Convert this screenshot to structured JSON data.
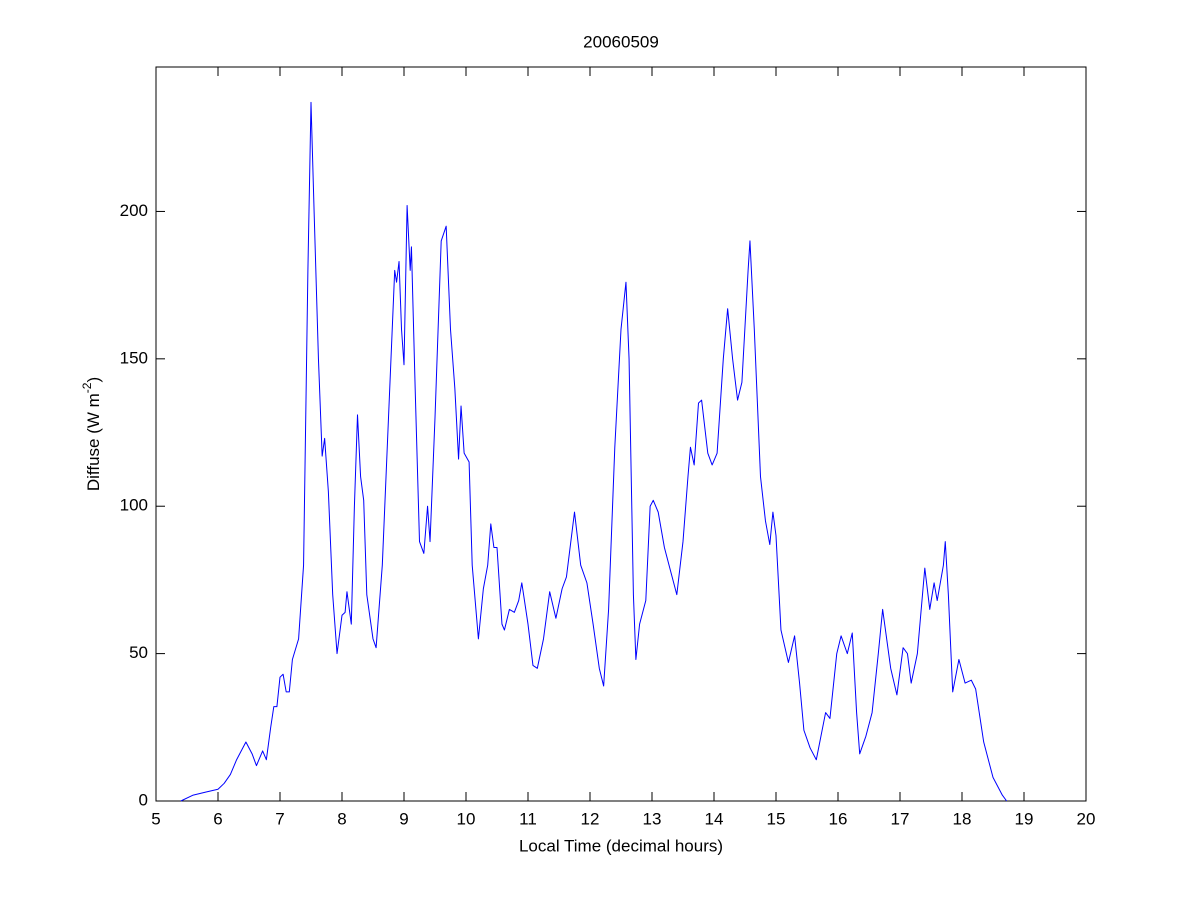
{
  "chart_data": {
    "type": "line",
    "title": "20060509",
    "x_label": "Local Time (decimal hours)",
    "y_label": {
      "text": "Diffuse (W m",
      "sup": "-2",
      "end": ")"
    },
    "xlim": [
      5,
      20
    ],
    "xticks": [
      5,
      6,
      7,
      8,
      9,
      10,
      11,
      12,
      13,
      14,
      15,
      16,
      17,
      18,
      19,
      20
    ],
    "ylim": [
      0,
      249
    ],
    "yticks": [
      0,
      50,
      100,
      150,
      200
    ],
    "grid": false,
    "x": [
      5.4,
      5.6,
      5.8,
      6.0,
      6.1,
      6.2,
      6.3,
      6.45,
      6.55,
      6.62,
      6.72,
      6.78,
      6.85,
      6.9,
      6.95,
      7.0,
      7.05,
      7.1,
      7.15,
      7.2,
      7.3,
      7.38,
      7.45,
      7.5,
      7.55,
      7.62,
      7.68,
      7.72,
      7.78,
      7.85,
      7.92,
      8.0,
      8.05,
      8.08,
      8.15,
      8.2,
      8.25,
      8.3,
      8.35,
      8.4,
      8.5,
      8.55,
      8.65,
      8.75,
      8.85,
      8.88,
      8.92,
      8.96,
      9.0,
      9.05,
      9.1,
      9.12,
      9.18,
      9.25,
      9.32,
      9.38,
      9.42,
      9.5,
      9.6,
      9.68,
      9.75,
      9.82,
      9.88,
      9.92,
      9.97,
      10.05,
      10.1,
      10.2,
      10.28,
      10.35,
      10.4,
      10.45,
      10.5,
      10.58,
      10.62,
      10.7,
      10.78,
      10.85,
      10.9,
      11.0,
      11.08,
      11.15,
      11.25,
      11.35,
      11.45,
      11.55,
      11.62,
      11.75,
      11.85,
      11.95,
      12.05,
      12.15,
      12.22,
      12.3,
      12.4,
      12.5,
      12.58,
      12.63,
      12.7,
      12.74,
      12.8,
      12.9,
      12.97,
      13.02,
      13.1,
      13.2,
      13.3,
      13.4,
      13.5,
      13.58,
      13.62,
      13.68,
      13.75,
      13.8,
      13.9,
      13.97,
      14.05,
      14.15,
      14.22,
      14.3,
      14.38,
      14.45,
      14.55,
      14.58,
      14.65,
      14.75,
      14.83,
      14.9,
      14.95,
      15.0,
      15.08,
      15.2,
      15.3,
      15.38,
      15.45,
      15.55,
      15.65,
      15.8,
      15.87,
      15.98,
      16.05,
      16.15,
      16.23,
      16.3,
      16.35,
      16.45,
      16.55,
      16.65,
      16.72,
      16.85,
      16.95,
      17.05,
      17.12,
      17.18,
      17.28,
      17.4,
      17.48,
      17.55,
      17.6,
      17.7,
      17.73,
      17.78,
      17.85,
      17.95,
      18.05,
      18.15,
      18.22,
      18.35,
      18.5,
      18.65,
      18.72
    ],
    "series": [
      {
        "color": "#0000ff",
        "values": [
          0,
          2,
          3,
          4,
          6,
          9,
          14,
          20,
          16,
          12,
          17,
          14,
          25,
          32,
          32,
          42,
          43,
          37,
          37,
          48,
          55,
          80,
          180,
          237,
          200,
          150,
          117,
          123,
          105,
          70,
          50,
          63,
          64,
          71,
          60,
          100,
          131,
          110,
          102,
          70,
          55,
          52,
          80,
          130,
          180,
          176,
          183,
          160,
          148,
          202,
          180,
          188,
          140,
          88,
          84,
          100,
          88,
          130,
          190,
          195,
          160,
          140,
          116,
          134,
          118,
          115,
          80,
          55,
          72,
          80,
          94,
          86,
          86,
          60,
          58,
          65,
          64,
          68,
          74,
          60,
          46,
          45,
          55,
          71,
          62,
          72,
          76,
          98,
          80,
          74,
          60,
          45,
          39,
          65,
          120,
          160,
          176,
          150,
          70,
          48,
          60,
          68,
          100,
          102,
          98,
          86,
          78,
          70,
          88,
          110,
          120,
          114,
          135,
          136,
          118,
          114,
          118,
          150,
          167,
          150,
          136,
          142,
          180,
          190,
          160,
          110,
          95,
          87,
          98,
          90,
          58,
          47,
          56,
          40,
          24,
          18,
          14,
          30,
          28,
          50,
          56,
          50,
          57,
          30,
          16,
          22,
          30,
          50,
          65,
          45,
          36,
          52,
          50,
          40,
          50,
          79,
          65,
          74,
          68,
          80,
          88,
          70,
          37,
          48,
          40,
          41,
          38,
          20,
          8,
          2,
          0
        ]
      }
    ]
  }
}
